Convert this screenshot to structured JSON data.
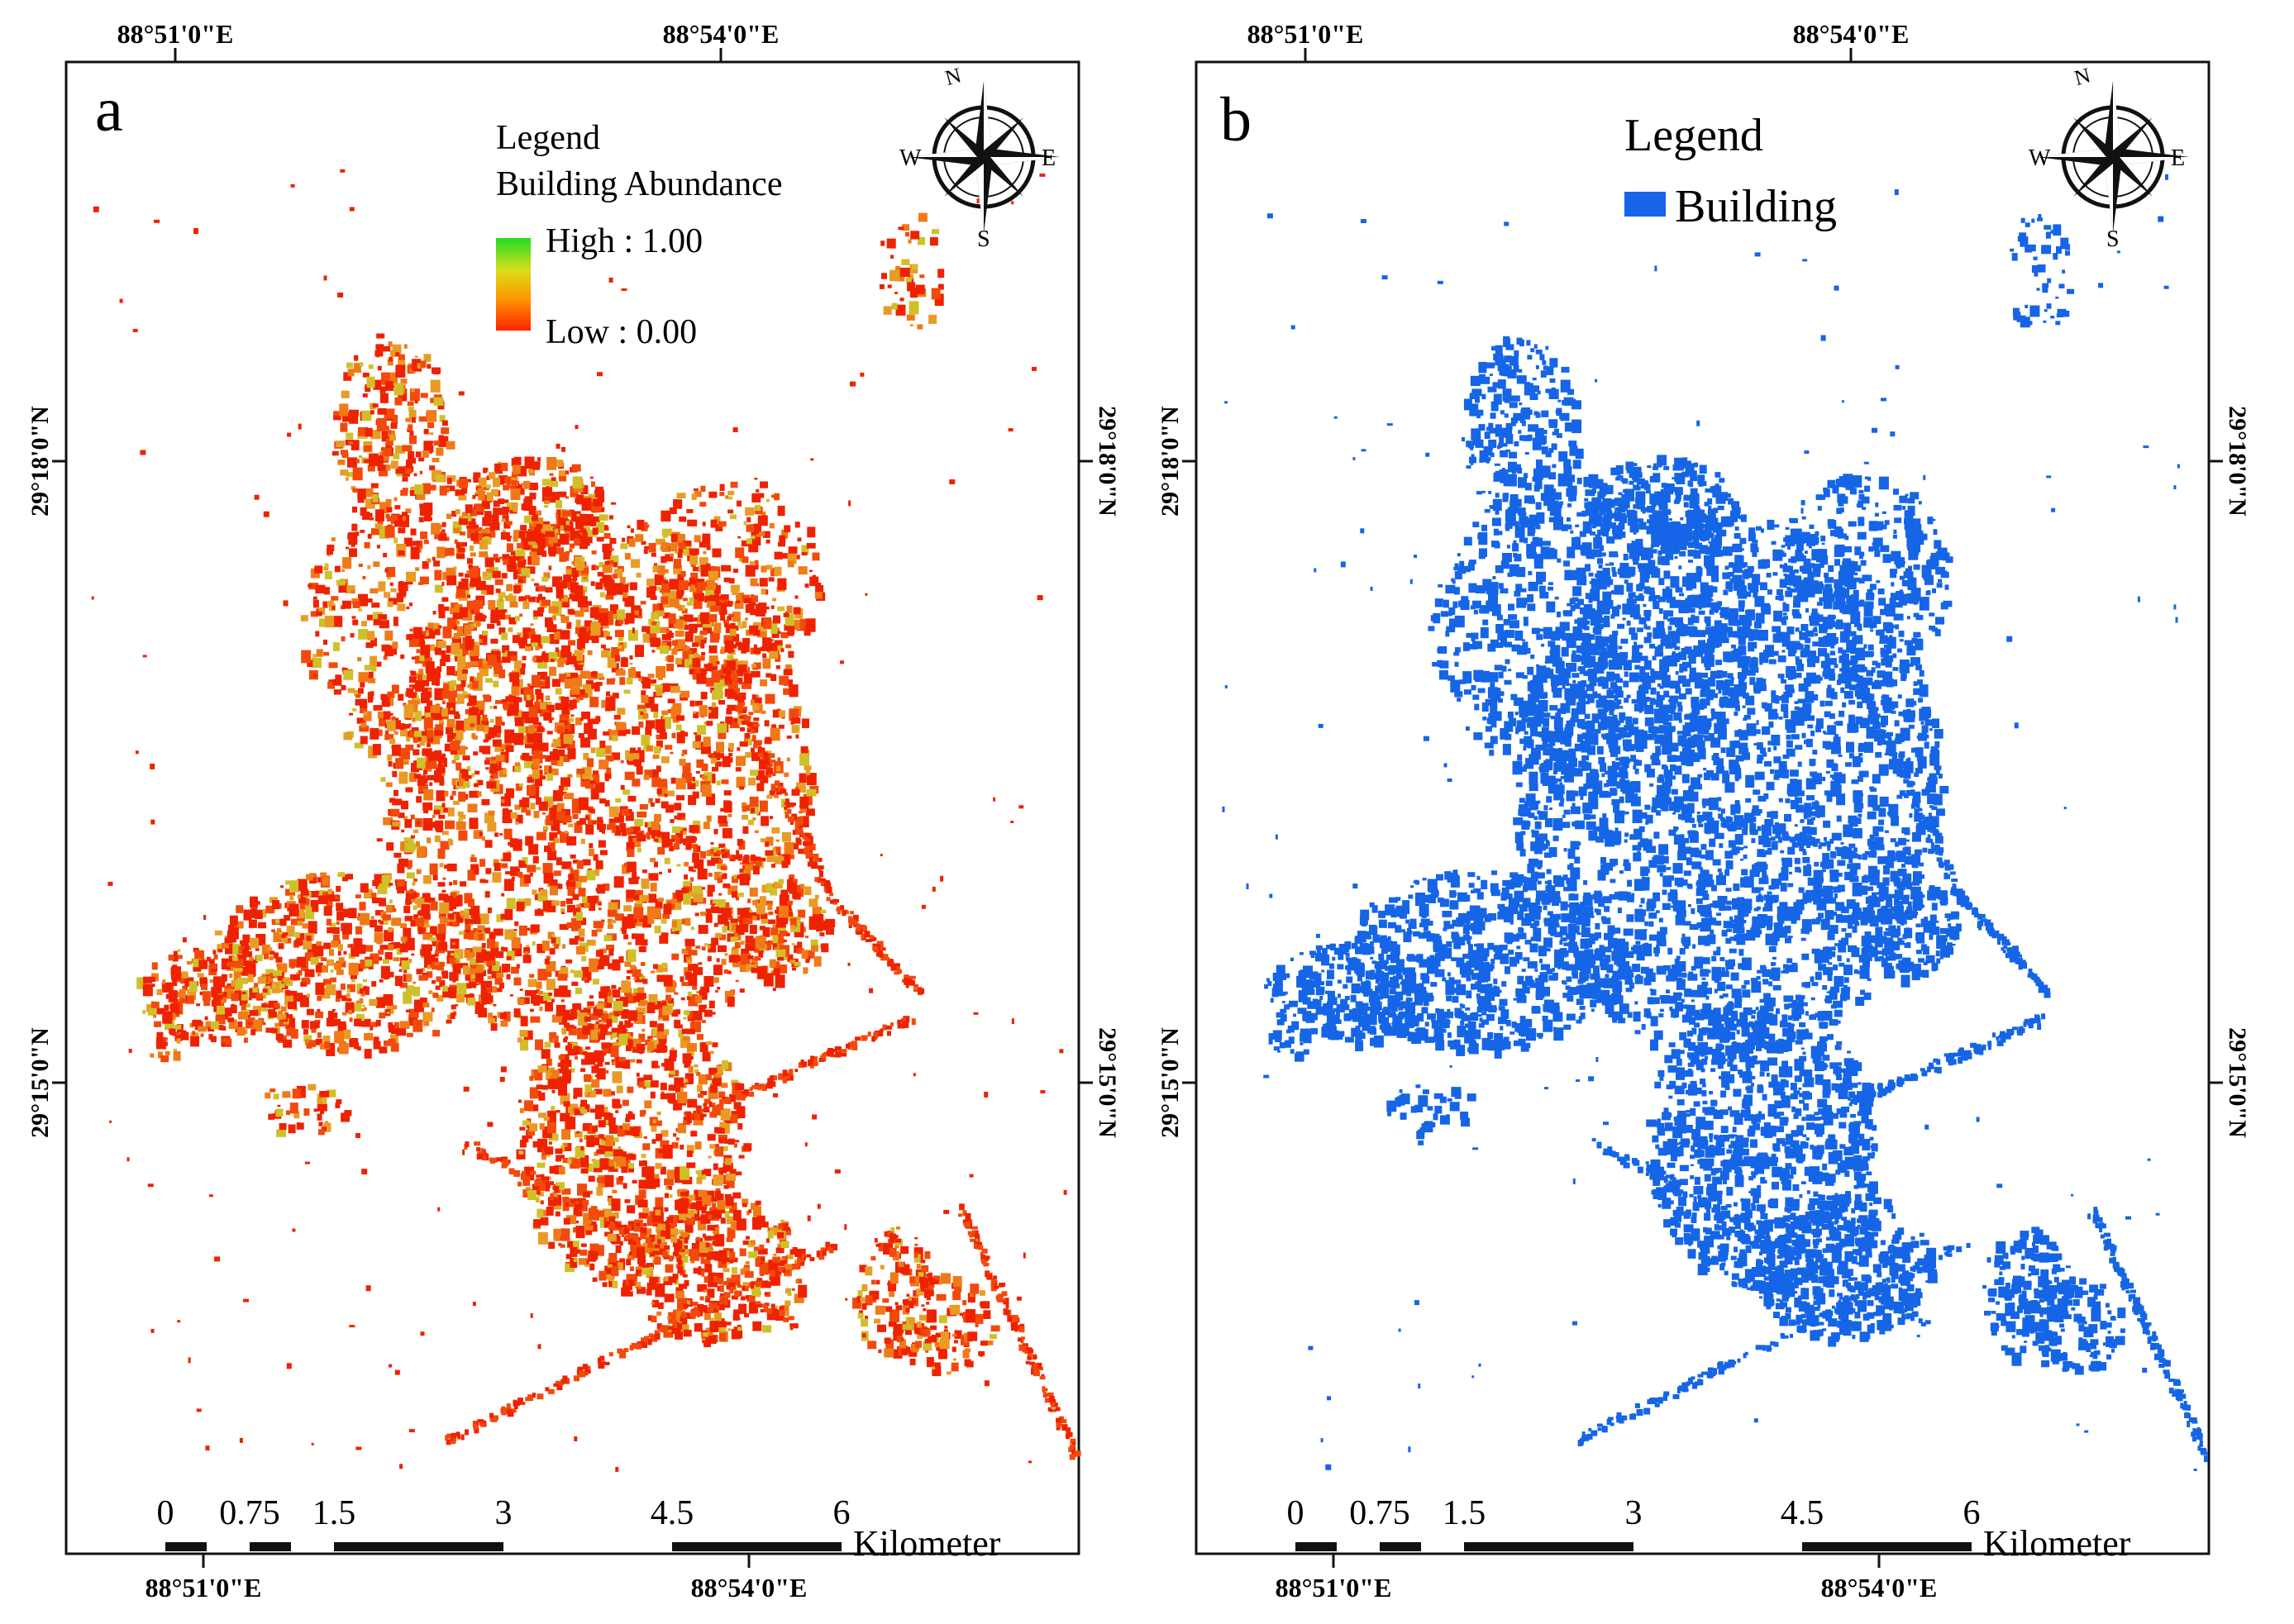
{
  "panels": [
    {
      "id": "a",
      "label": "a",
      "top_ticks": [
        "88°51'0\"E",
        "88°54'0\"E"
      ],
      "bottom_ticks": [
        "88°51'0\"E",
        "88°54'0\"E"
      ],
      "side_ticks": [
        "29°18'0\"N",
        "29°15'0\"N"
      ],
      "legend": {
        "title": "Legend",
        "subtitle": "Building Abundance",
        "high_label": "High : 1.00",
        "low_label": "Low : 0.00",
        "high_color": "#22dd22",
        "low_color": "#ff2200"
      },
      "compass": {
        "n": "N",
        "s": "S",
        "e": "E",
        "w": "W"
      },
      "scale": {
        "ticks": [
          "0",
          "0.75",
          "1.5",
          "3",
          "4.5",
          "6"
        ],
        "unit": "Kilometer"
      },
      "map_colors": [
        "#ee2200",
        "#f24a0c",
        "#f07a18",
        "#e89c26",
        "#cfc02a"
      ]
    },
    {
      "id": "b",
      "label": "b",
      "top_ticks": [
        "88°51'0\"E",
        "88°54'0\"E"
      ],
      "bottom_ticks": [
        "88°51'0\"E",
        "88°54'0\"E"
      ],
      "side_ticks": [
        "29°18'0\"N",
        "29°15'0\"N"
      ],
      "legend": {
        "title": "Legend",
        "item": "Building",
        "item_color": "#1565e6"
      },
      "compass": {
        "n": "N",
        "s": "S",
        "e": "E",
        "w": "W"
      },
      "scale": {
        "ticks": [
          "0",
          "0.75",
          "1.5",
          "3",
          "4.5",
          "6"
        ],
        "unit": "Kilometer"
      },
      "map_colors": [
        "#1565e6"
      ]
    }
  ]
}
